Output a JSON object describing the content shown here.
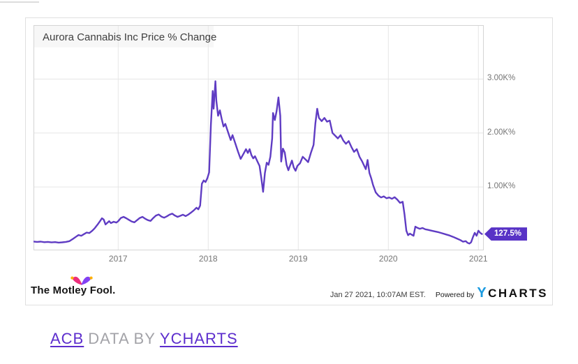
{
  "chart_card": {
    "title": "Aurora Cannabis Inc Price % Change",
    "badge": {
      "label": "127.5%"
    },
    "footer": {
      "brand": "The Motley Fool.",
      "timestamp": "Jan 27 2021, 10:07AM EST.",
      "powered_by": "Powered by",
      "ycharts_logo_y": "Y",
      "ycharts_logo_text": "CHARTS"
    }
  },
  "caption": {
    "ticker_link": "ACB",
    "data_by": "DATA BY",
    "source_link": "YCHARTS"
  },
  "colors": {
    "line": "#5f3cc3",
    "badge_bg": "#5833c6",
    "link_purple": "#5c2dcd",
    "muted_gray": "#a3a3a8",
    "axis_label": "#757575",
    "grid": "#e6e6e6",
    "plot_border": "#d4d4d4",
    "title_bg": "#f7f7f7",
    "ycharts_blue": "#1b9be0"
  },
  "chart_data": {
    "type": "line",
    "title": "Aurora Cannabis Inc Price % Change",
    "x_range": [
      2016.06,
      2021.06
    ],
    "y_range": [
      -175,
      4000
    ],
    "grid": true,
    "legend": "none",
    "x_ticks": [
      {
        "v": 2017,
        "label": "2017"
      },
      {
        "v": 2018,
        "label": "2018"
      },
      {
        "v": 2019,
        "label": "2019"
      },
      {
        "v": 2020,
        "label": "2020"
      },
      {
        "v": 2021,
        "label": "2021"
      }
    ],
    "y_ticks": [
      {
        "v": 1000,
        "label": "1.00K%"
      },
      {
        "v": 2000,
        "label": "2.00K%"
      },
      {
        "v": 3000,
        "label": "3.00K%"
      }
    ],
    "last_value": 127.5,
    "end_label": "127.5%",
    "series": [
      {
        "name": "Aurora Cannabis Inc Price % Change",
        "color": "#5f3cc3",
        "points": [
          [
            2016.06,
            -12
          ],
          [
            2016.1,
            -18
          ],
          [
            2016.14,
            -14
          ],
          [
            2016.18,
            -24
          ],
          [
            2016.22,
            -18
          ],
          [
            2016.26,
            -28
          ],
          [
            2016.3,
            -22
          ],
          [
            2016.34,
            -32
          ],
          [
            2016.38,
            -26
          ],
          [
            2016.42,
            -18
          ],
          [
            2016.46,
            -5
          ],
          [
            2016.5,
            40
          ],
          [
            2016.53,
            75
          ],
          [
            2016.56,
            110
          ],
          [
            2016.59,
            95
          ],
          [
            2016.62,
            125
          ],
          [
            2016.65,
            155
          ],
          [
            2016.68,
            145
          ],
          [
            2016.71,
            185
          ],
          [
            2016.74,
            235
          ],
          [
            2016.77,
            300
          ],
          [
            2016.8,
            370
          ],
          [
            2016.82,
            420
          ],
          [
            2016.84,
            395
          ],
          [
            2016.86,
            305
          ],
          [
            2016.88,
            335
          ],
          [
            2016.9,
            365
          ],
          [
            2016.92,
            330
          ],
          [
            2016.95,
            355
          ],
          [
            2016.98,
            340
          ],
          [
            2017.0,
            365
          ],
          [
            2017.03,
            425
          ],
          [
            2017.06,
            445
          ],
          [
            2017.09,
            420
          ],
          [
            2017.12,
            390
          ],
          [
            2017.15,
            360
          ],
          [
            2017.18,
            345
          ],
          [
            2017.21,
            385
          ],
          [
            2017.24,
            425
          ],
          [
            2017.27,
            445
          ],
          [
            2017.3,
            410
          ],
          [
            2017.33,
            385
          ],
          [
            2017.36,
            370
          ],
          [
            2017.39,
            425
          ],
          [
            2017.42,
            470
          ],
          [
            2017.45,
            490
          ],
          [
            2017.48,
            450
          ],
          [
            2017.51,
            430
          ],
          [
            2017.54,
            455
          ],
          [
            2017.57,
            485
          ],
          [
            2017.6,
            505
          ],
          [
            2017.63,
            470
          ],
          [
            2017.66,
            445
          ],
          [
            2017.69,
            465
          ],
          [
            2017.72,
            485
          ],
          [
            2017.75,
            460
          ],
          [
            2017.78,
            490
          ],
          [
            2017.81,
            525
          ],
          [
            2017.84,
            565
          ],
          [
            2017.87,
            615
          ],
          [
            2017.89,
            585
          ],
          [
            2017.91,
            655
          ],
          [
            2017.93,
            1060
          ],
          [
            2017.95,
            1120
          ],
          [
            2017.97,
            1090
          ],
          [
            2017.99,
            1160
          ],
          [
            2018.01,
            1270
          ],
          [
            2018.03,
            2150
          ],
          [
            2018.05,
            2780
          ],
          [
            2018.06,
            2450
          ],
          [
            2018.08,
            2960
          ],
          [
            2018.09,
            2600
          ],
          [
            2018.11,
            2320
          ],
          [
            2018.13,
            2420
          ],
          [
            2018.15,
            2260
          ],
          [
            2018.17,
            2120
          ],
          [
            2018.19,
            2170
          ],
          [
            2018.22,
            2020
          ],
          [
            2018.25,
            1870
          ],
          [
            2018.27,
            1960
          ],
          [
            2018.3,
            1810
          ],
          [
            2018.33,
            1660
          ],
          [
            2018.36,
            1520
          ],
          [
            2018.39,
            1610
          ],
          [
            2018.42,
            1700
          ],
          [
            2018.44,
            1630
          ],
          [
            2018.46,
            1700
          ],
          [
            2018.48,
            1590
          ],
          [
            2018.5,
            1530
          ],
          [
            2018.52,
            1570
          ],
          [
            2018.55,
            1460
          ],
          [
            2018.57,
            1390
          ],
          [
            2018.59,
            1160
          ],
          [
            2018.61,
            910
          ],
          [
            2018.63,
            1260
          ],
          [
            2018.65,
            1450
          ],
          [
            2018.67,
            1410
          ],
          [
            2018.69,
            1560
          ],
          [
            2018.71,
            1900
          ],
          [
            2018.72,
            2370
          ],
          [
            2018.74,
            2240
          ],
          [
            2018.76,
            2410
          ],
          [
            2018.78,
            2660
          ],
          [
            2018.8,
            2320
          ],
          [
            2018.81,
            1470
          ],
          [
            2018.83,
            1710
          ],
          [
            2018.85,
            1640
          ],
          [
            2018.87,
            1410
          ],
          [
            2018.89,
            1310
          ],
          [
            2018.91,
            1400
          ],
          [
            2018.93,
            1490
          ],
          [
            2018.95,
            1360
          ],
          [
            2018.97,
            1300
          ],
          [
            2018.99,
            1390
          ],
          [
            2019.02,
            1440
          ],
          [
            2019.05,
            1560
          ],
          [
            2019.08,
            1510
          ],
          [
            2019.11,
            1460
          ],
          [
            2019.14,
            1630
          ],
          [
            2019.17,
            1780
          ],
          [
            2019.19,
            2180
          ],
          [
            2019.21,
            2450
          ],
          [
            2019.23,
            2280
          ],
          [
            2019.26,
            2220
          ],
          [
            2019.29,
            2280
          ],
          [
            2019.32,
            2210
          ],
          [
            2019.35,
            2230
          ],
          [
            2019.38,
            2000
          ],
          [
            2019.41,
            1950
          ],
          [
            2019.44,
            1900
          ],
          [
            2019.47,
            1960
          ],
          [
            2019.5,
            1860
          ],
          [
            2019.53,
            1800
          ],
          [
            2019.56,
            1850
          ],
          [
            2019.59,
            1740
          ],
          [
            2019.62,
            1650
          ],
          [
            2019.65,
            1700
          ],
          [
            2019.68,
            1560
          ],
          [
            2019.71,
            1470
          ],
          [
            2019.73,
            1400
          ],
          [
            2019.75,
            1330
          ],
          [
            2019.77,
            1500
          ],
          [
            2019.79,
            1260
          ],
          [
            2019.81,
            1160
          ],
          [
            2019.83,
            1040
          ],
          [
            2019.86,
            900
          ],
          [
            2019.89,
            840
          ],
          [
            2019.92,
            805
          ],
          [
            2019.95,
            825
          ],
          [
            2019.98,
            790
          ],
          [
            2020.01,
            805
          ],
          [
            2020.04,
            780
          ],
          [
            2020.07,
            810
          ],
          [
            2020.1,
            765
          ],
          [
            2020.13,
            705
          ],
          [
            2020.16,
            725
          ],
          [
            2020.18,
            490
          ],
          [
            2020.2,
            190
          ],
          [
            2020.22,
            105
          ],
          [
            2020.24,
            135
          ],
          [
            2020.26,
            115
          ],
          [
            2020.28,
            95
          ],
          [
            2020.3,
            265
          ],
          [
            2020.32,
            245
          ],
          [
            2020.35,
            225
          ],
          [
            2020.38,
            240
          ],
          [
            2020.41,
            215
          ],
          [
            2020.44,
            205
          ],
          [
            2020.48,
            190
          ],
          [
            2020.52,
            175
          ],
          [
            2020.56,
            160
          ],
          [
            2020.6,
            140
          ],
          [
            2020.64,
            120
          ],
          [
            2020.68,
            100
          ],
          [
            2020.72,
            75
          ],
          [
            2020.76,
            45
          ],
          [
            2020.8,
            15
          ],
          [
            2020.83,
            -15
          ],
          [
            2020.86,
            -5
          ],
          [
            2020.88,
            -35
          ],
          [
            2020.9,
            -50
          ],
          [
            2020.92,
            -25
          ],
          [
            2020.94,
            70
          ],
          [
            2020.96,
            150
          ],
          [
            2020.98,
            95
          ],
          [
            2021.0,
            190
          ],
          [
            2021.02,
            150
          ],
          [
            2021.04,
            127.5
          ]
        ]
      }
    ]
  }
}
